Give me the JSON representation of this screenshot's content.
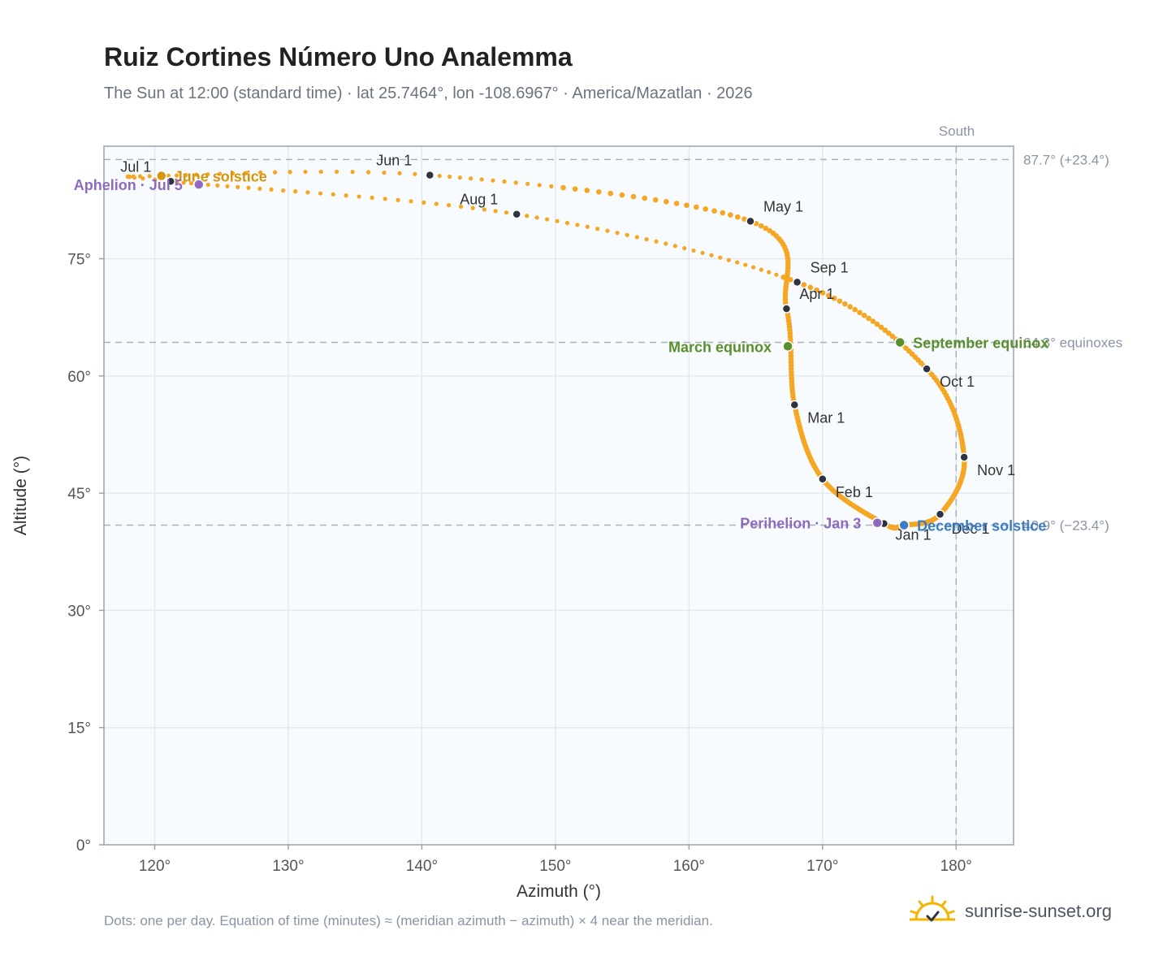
{
  "title": "Ruiz Cortines Número Uno Analemma",
  "subtitle": "The Sun at 12:00 (standard time) · lat 25.7464°, lon -108.6967° · America/Mazatlan · 2026",
  "footnote": "Dots: one per day. Equation of time (minutes) ≈ (meridian azimuth − azimuth) × 4 near the meridian.",
  "brand": "sunrise-sunset.org",
  "colors": {
    "curve": "#f5a623",
    "month_dot": "#2d3440",
    "solstice_june": "#d4960e",
    "solstice_december": "#3b7dc4",
    "equinox": "#5a8f2e",
    "apsis": "#8e6bbf",
    "plot_bg": "#f8fbfd",
    "grid": "#e3e9ef",
    "axis": "#9aa3b0",
    "ref_line": "#a8b2bd"
  },
  "chart_data": {
    "type": "scatter",
    "xlabel": "Azimuth (°)",
    "ylabel": "Altitude (°)",
    "xlim": [
      116.2,
      184.3
    ],
    "ylim": [
      0,
      89.4
    ],
    "x_ticks": [
      120,
      130,
      140,
      150,
      160,
      170,
      180
    ],
    "x_tick_labels": [
      "120°",
      "130°",
      "140°",
      "150°",
      "160°",
      "170°",
      "180°"
    ],
    "y_ticks": [
      0,
      15,
      30,
      45,
      60,
      75
    ],
    "y_tick_labels": [
      "0°",
      "15°",
      "30°",
      "45°",
      "60°",
      "75°"
    ],
    "grid": true,
    "meridian": {
      "azimuth": 180,
      "label": "South"
    },
    "reference_lines": [
      {
        "altitude": 87.7,
        "label": "87.7° (+23.4°)"
      },
      {
        "altitude": 64.3,
        "label": "64.3° equinoxes"
      },
      {
        "altitude": 40.9,
        "label": "40.9° (−23.4°)"
      }
    ],
    "months": [
      {
        "label": "Jan 1",
        "az": 174.6,
        "alt": 41.1
      },
      {
        "label": "Feb 1",
        "az": 170.0,
        "alt": 46.8
      },
      {
        "label": "Mar 1",
        "az": 167.9,
        "alt": 56.3
      },
      {
        "label": "Apr 1",
        "az": 167.3,
        "alt": 68.6
      },
      {
        "label": "May 1",
        "az": 164.6,
        "alt": 79.8
      },
      {
        "label": "Jun 1",
        "az": 140.6,
        "alt": 85.7
      },
      {
        "label": "Jul 1",
        "az": 121.2,
        "alt": 84.9
      },
      {
        "label": "Aug 1",
        "az": 147.1,
        "alt": 80.7
      },
      {
        "label": "Sep 1",
        "az": 168.1,
        "alt": 72.0
      },
      {
        "label": "Oct 1",
        "az": 177.8,
        "alt": 60.9
      },
      {
        "label": "Nov 1",
        "az": 180.6,
        "alt": 49.6
      },
      {
        "label": "Dec 1",
        "az": 178.8,
        "alt": 42.3
      }
    ],
    "events": [
      {
        "label": "June solstice",
        "az": 120.5,
        "alt": 85.6,
        "kind": "solstice_june"
      },
      {
        "label": "December solstice",
        "az": 176.1,
        "alt": 40.9,
        "kind": "solstice_december"
      },
      {
        "label": "March equinox",
        "az": 167.4,
        "alt": 63.8,
        "kind": "equinox"
      },
      {
        "label": "September equinox",
        "az": 175.8,
        "alt": 64.3,
        "kind": "equinox"
      },
      {
        "label": "Aphelion · Jul 5",
        "az": 123.3,
        "alt": 84.5,
        "kind": "apsis"
      },
      {
        "label": "Perihelion · Jan 3",
        "az": 174.1,
        "alt": 41.2,
        "kind": "apsis"
      }
    ]
  }
}
